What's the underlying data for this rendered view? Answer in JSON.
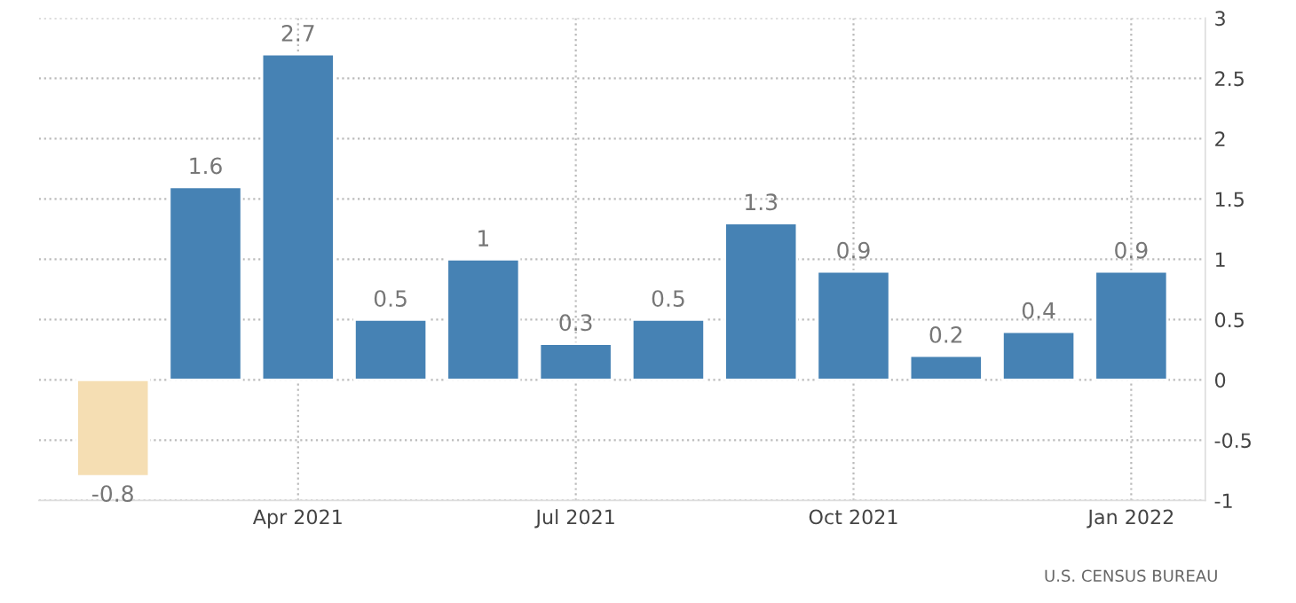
{
  "chart_data": {
    "type": "bar",
    "categories": [
      null,
      null,
      "Apr 2021",
      null,
      null,
      "Jul 2021",
      null,
      null,
      "Oct 2021",
      null,
      null,
      "Jan 2022"
    ],
    "values": [
      -0.8,
      1.6,
      2.7,
      0.5,
      1,
      0.3,
      0.5,
      1.3,
      0.9,
      0.2,
      0.4,
      0.9
    ],
    "colors": [
      "#f5deb3",
      "#4682b4",
      "#4682b4",
      "#4682b4",
      "#4682b4",
      "#4682b4",
      "#4682b4",
      "#4682b4",
      "#4682b4",
      "#4682b4",
      "#4682b4",
      "#4682b4"
    ],
    "ylim": [
      -1,
      3
    ],
    "yticks": [
      -1,
      -0.5,
      0,
      0.5,
      1,
      1.5,
      2,
      2.5,
      3
    ],
    "grid": true,
    "data_labels": true,
    "legend": false,
    "annotations": [
      "U.S. CENSUS BUREAU"
    ]
  }
}
